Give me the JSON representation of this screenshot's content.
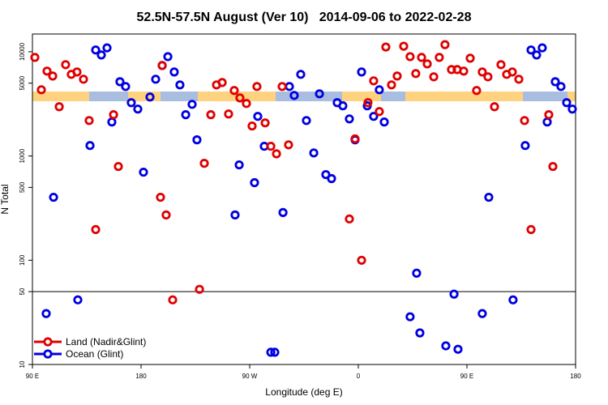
{
  "chart_data": {
    "type": "scatter",
    "title": "52.5N-57.5N August (Ver 10)   2014-09-06 to 2022-02-28",
    "x_label": "Longitude (deg E)",
    "y_label": "N Total",
    "xlim": [
      90,
      540
    ],
    "xticks": [
      {
        "value": 90,
        "label": "90 E"
      },
      180,
      {
        "value": 270,
        "label": "90 W"
      },
      {
        "value": 360,
        "label": "0"
      },
      {
        "value": 450,
        "label": "90 E"
      },
      {
        "value": 540,
        "label": "180"
      }
    ],
    "ylim": [
      10,
      14800
    ],
    "yticks": [
      10,
      50,
      100,
      500,
      1000,
      5000,
      10000
    ],
    "log_y": true,
    "reference_line": 50,
    "legend": "lower left",
    "series": [
      {
        "name": "Land (Nadir&Glint)",
        "color": "#e00000",
        "x": [
          92.0,
          97.4,
          102.1,
          106.8,
          112.2,
          117.5,
          122.2,
          126.9,
          132.3,
          137.0,
          142.4,
          157.2,
          161.2,
          196.1,
          197.5,
          200.8,
          206.2,
          228.4,
          232.4,
          237.8,
          242.5,
          247.2,
          252.5,
          257.2,
          261.9,
          267.3,
          272.0,
          276.0,
          282.8,
          287.5,
          292.2,
          296.9,
          302.2,
          352.6,
          357.3,
          362.7,
          368.0,
          372.7,
          377.4,
          382.8,
          387.5,
          392.2,
          397.6,
          402.9,
          407.6,
          412.4,
          417.1,
          422.5,
          427.1,
          431.8,
          437.2,
          441.9,
          447.3,
          452.7,
          458.0,
          462.7,
          467.4,
          472.8,
          478.2,
          482.9,
          487.6,
          493.0,
          497.7,
          503.1,
          517.8,
          521.2
        ],
        "values": [
          8830,
          4320,
          6520,
          5850,
          2970,
          7520,
          6070,
          6400,
          5450,
          2190,
          197,
          2490,
          793,
          402,
          7380,
          272,
          41.7,
          52.6,
          851,
          2490,
          4810,
          5070,
          2530,
          4250,
          3610,
          3190,
          1940,
          4640,
          2080,
          1240,
          1050,
          4640,
          1280,
          249,
          1460,
          100,
          3250,
          5260,
          2670,
          11100,
          4810,
          5850,
          11300,
          8980,
          6180,
          8830,
          7650,
          5750,
          8830,
          11700,
          6750,
          6750,
          6520,
          8670,
          4250,
          6400,
          5750,
          2970,
          7520,
          6070,
          6400,
          5450,
          2190,
          197,
          2490,
          793
        ]
      },
      {
        "name": "Ocean (Glint)",
        "color": "#0000e0",
        "x": [
          101.4,
          107.5,
          127.6,
          137.7,
          142.4,
          147.1,
          151.8,
          155.8,
          162.5,
          167.2,
          171.9,
          177.3,
          182.0,
          187.4,
          192.1,
          197.5,
          202.2,
          207.5,
          212.2,
          217.0,
          222.3,
          226.3,
          257.9,
          261.3,
          274.0,
          276.7,
          282.1,
          287.5,
          290.8,
          297.6,
          302.9,
          306.9,
          312.3,
          317.0,
          323.1,
          327.8,
          333.1,
          337.8,
          342.5,
          347.2,
          352.6,
          357.3,
          362.7,
          367.4,
          372.7,
          377.4,
          381.5,
          402.9,
          408.3,
          411.0,
          432.5,
          439.3,
          442.6,
          462.7,
          468.1,
          488.2,
          498.3,
          503.1,
          507.7,
          512.4,
          516.5,
          523.2,
          527.9,
          532.6,
          537.3
        ],
        "values": [
          30.8,
          402,
          41.7,
          1260,
          10400,
          9310,
          10900,
          2120,
          5160,
          4640,
          3250,
          2820,
          700,
          3680,
          5450,
          7380,
          8980,
          6400,
          4810,
          2490,
          3130,
          1430,
          272,
          822,
          555,
          2400,
          1240,
          13.1,
          13.1,
          287,
          4640,
          3810,
          6070,
          2190,
          1070,
          3950,
          663,
          607,
          3250,
          3030,
          2270,
          1430,
          6400,
          3030,
          2400,
          4320,
          2120,
          28.7,
          75.2,
          20.1,
          15.1,
          47.3,
          14.0,
          30.8,
          402,
          41.7,
          1260,
          10400,
          9310,
          10900,
          2120,
          5160,
          4640,
          3250,
          2820
        ]
      }
    ]
  }
}
